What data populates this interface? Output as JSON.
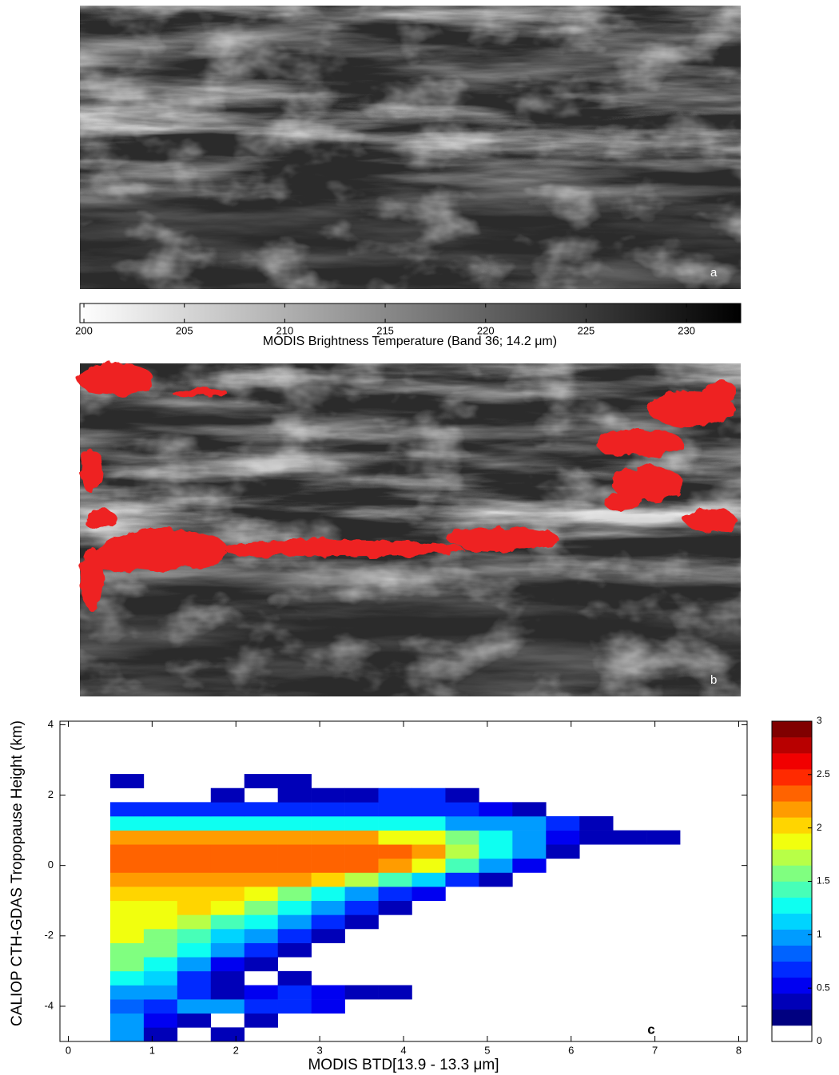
{
  "chart_data": [
    {
      "type": "image",
      "label": "a",
      "colorbar": {
        "title": "MODIS Brightness Temperature (Band 36; 14.2 μm)",
        "lim": [
          199.8,
          232.7
        ],
        "ticks": [
          200,
          205,
          210,
          215,
          220,
          225,
          230
        ],
        "colors": [
          "#ffffff",
          "#000000"
        ]
      }
    },
    {
      "type": "image",
      "label": "b",
      "overlay_color": "#ee2222"
    },
    {
      "type": "heatmap",
      "label": "c",
      "x_label": "MODIS BTD[13.9 - 13.3 μm]",
      "y_label": "CALIOP CTH-GDAS Tropopause Height (km)",
      "xlim": [
        -0.1,
        8.1
      ],
      "ylim": [
        -5,
        4.1
      ],
      "xticks": [
        0,
        1,
        2,
        3,
        4,
        5,
        6,
        7,
        8
      ],
      "yticks": [
        -4,
        -2,
        0,
        2,
        4
      ],
      "x_bins": [
        0.5,
        0.9,
        1.3,
        1.7,
        2.1,
        2.5,
        2.9,
        3.3,
        3.7,
        4.1,
        4.5,
        4.9,
        5.3,
        5.7,
        6.1,
        6.5,
        6.9,
        7.3
      ],
      "y_bins": [
        -5.0,
        -4.6,
        -4.2,
        -3.8,
        -3.4,
        -3.0,
        -2.6,
        -2.2,
        -1.8,
        -1.4,
        -1.0,
        -0.6,
        -0.2,
        0.2,
        0.6,
        1.0,
        1.4,
        1.8,
        2.2,
        2.6
      ],
      "values": [
        [
          1.0,
          0.4,
          null,
          0.3,
          null,
          null,
          null,
          null,
          null,
          null,
          null,
          null,
          null,
          null,
          null,
          null,
          null
        ],
        [
          0.9,
          0.5,
          0.3,
          null,
          0.3,
          null,
          null,
          null,
          null,
          null,
          null,
          null,
          null,
          null,
          null,
          null,
          null
        ],
        [
          0.8,
          0.7,
          0.9,
          0.9,
          0.7,
          0.6,
          0.5,
          null,
          null,
          null,
          null,
          null,
          null,
          null,
          null,
          null,
          null
        ],
        [
          1.0,
          0.9,
          0.6,
          0.4,
          0.5,
          0.6,
          0.5,
          0.4,
          0.3,
          null,
          null,
          null,
          null,
          null,
          null,
          null,
          null
        ],
        [
          1.3,
          1.1,
          0.7,
          0.4,
          null,
          0.3,
          null,
          null,
          null,
          null,
          null,
          null,
          null,
          null,
          null,
          null,
          null
        ],
        [
          1.5,
          1.3,
          1.0,
          0.5,
          0.3,
          null,
          null,
          null,
          null,
          null,
          null,
          null,
          null,
          null,
          null,
          null,
          null
        ],
        [
          1.6,
          1.5,
          1.2,
          0.9,
          0.6,
          0.4,
          null,
          null,
          null,
          null,
          null,
          null,
          null,
          null,
          null,
          null,
          null
        ],
        [
          1.8,
          1.6,
          1.4,
          1.1,
          0.9,
          0.6,
          0.3,
          null,
          null,
          null,
          null,
          null,
          null,
          null,
          null,
          null,
          null
        ],
        [
          1.9,
          1.8,
          1.7,
          1.4,
          1.2,
          0.9,
          0.6,
          0.3,
          null,
          null,
          null,
          null,
          null,
          null,
          null,
          null,
          null
        ],
        [
          1.9,
          1.9,
          2.0,
          1.8,
          1.5,
          1.2,
          0.9,
          0.6,
          0.4,
          null,
          null,
          null,
          null,
          null,
          null,
          null,
          null
        ],
        [
          2.0,
          2.0,
          2.0,
          2.0,
          1.8,
          1.6,
          1.3,
          1.0,
          0.7,
          0.5,
          null,
          null,
          null,
          null,
          null,
          null,
          null
        ],
        [
          2.1,
          2.1,
          2.1,
          2.1,
          2.1,
          2.1,
          2.0,
          1.7,
          1.4,
          1.1,
          0.7,
          0.3,
          null,
          null,
          null,
          null,
          null
        ],
        [
          2.3,
          2.3,
          2.3,
          2.3,
          2.3,
          2.3,
          2.3,
          2.3,
          2.2,
          1.9,
          1.4,
          1.0,
          0.5,
          null,
          null,
          null,
          null
        ],
        [
          2.3,
          2.3,
          2.3,
          2.3,
          2.3,
          2.3,
          2.3,
          2.3,
          2.3,
          2.1,
          1.7,
          1.3,
          0.9,
          0.4,
          null,
          null,
          null
        ],
        [
          2.1,
          2.1,
          2.1,
          2.1,
          2.1,
          2.1,
          2.1,
          2.1,
          1.9,
          1.9,
          1.6,
          1.3,
          1.0,
          0.5,
          0.3,
          0.3,
          0.3
        ],
        [
          1.3,
          1.3,
          1.3,
          1.3,
          1.3,
          1.3,
          1.3,
          1.3,
          1.3,
          1.3,
          1.0,
          1.0,
          1.0,
          0.6,
          0.3,
          null,
          null
        ],
        [
          0.7,
          0.7,
          0.6,
          0.7,
          0.6,
          0.7,
          0.6,
          0.7,
          0.6,
          0.7,
          0.6,
          0.5,
          0.4,
          null,
          null,
          null,
          null
        ],
        [
          null,
          null,
          null,
          0.4,
          null,
          0.3,
          0.4,
          0.4,
          0.6,
          0.6,
          0.3,
          null,
          null,
          null,
          null,
          null,
          null
        ],
        [
          0.3,
          null,
          null,
          null,
          0.3,
          0.3,
          null,
          null,
          null,
          null,
          null,
          null,
          null,
          null,
          null,
          null,
          null
        ]
      ],
      "colorbar": {
        "lim": [
          0,
          3
        ],
        "ticks": [
          0,
          0.5,
          1,
          1.5,
          2,
          2.5,
          3
        ],
        "step": 0.15
      }
    }
  ]
}
